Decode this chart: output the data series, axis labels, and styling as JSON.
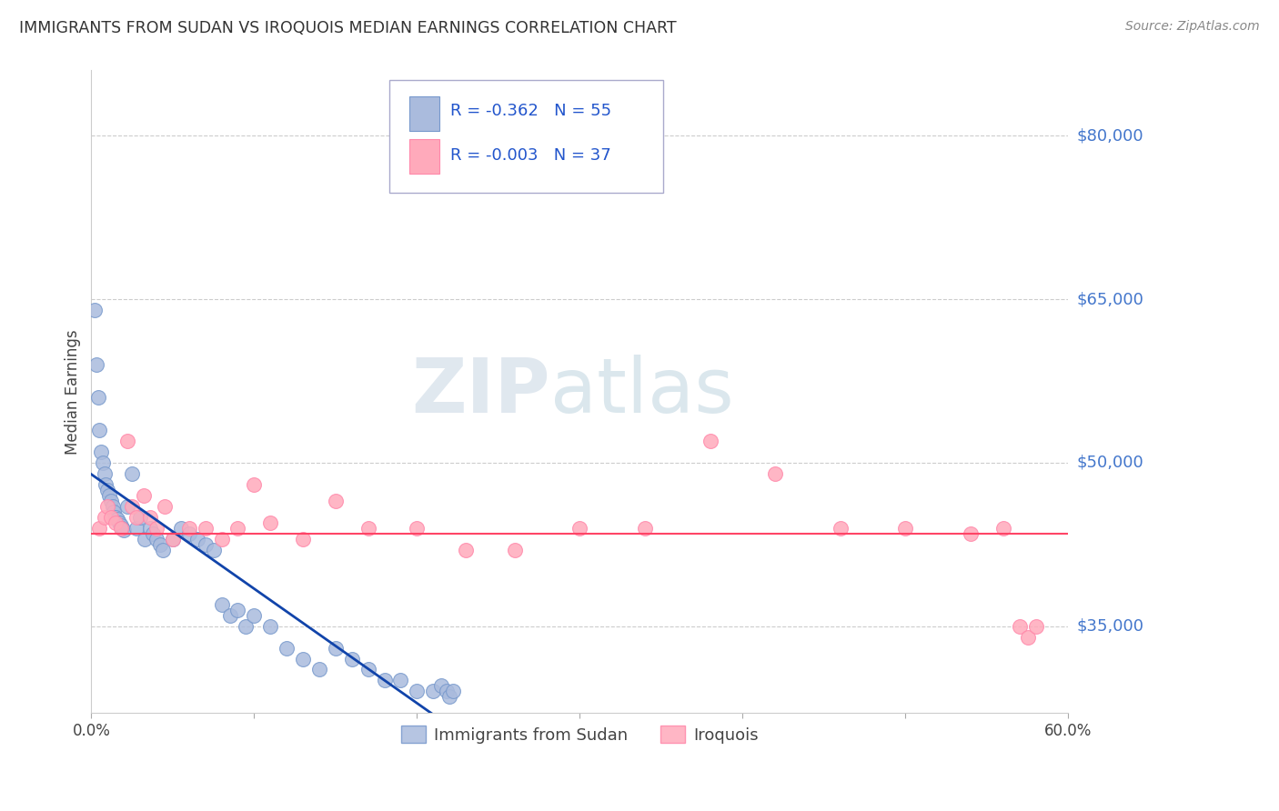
{
  "title": "IMMIGRANTS FROM SUDAN VS IROQUOIS MEDIAN EARNINGS CORRELATION CHART",
  "source": "Source: ZipAtlas.com",
  "ylabel": "Median Earnings",
  "xlim": [
    0.0,
    0.6
  ],
  "ylim": [
    27000,
    86000
  ],
  "yticks": [
    35000,
    50000,
    65000,
    80000
  ],
  "ytick_labels": [
    "$35,000",
    "$50,000",
    "$65,000",
    "$80,000"
  ],
  "xticks": [
    0.0,
    0.1,
    0.2,
    0.3,
    0.4,
    0.5,
    0.6
  ],
  "xtick_labels": [
    "0.0%",
    "",
    "",
    "",
    "",
    "",
    "60.0%"
  ],
  "blue_R": -0.362,
  "blue_N": 55,
  "pink_R": -0.003,
  "pink_N": 37,
  "blue_color": "#aabbdd",
  "pink_color": "#ffaabb",
  "blue_edge_color": "#7799cc",
  "pink_edge_color": "#ff88aa",
  "blue_line_color": "#1144aa",
  "pink_line_color": "#ff4466",
  "watermark_zip": "ZIP",
  "watermark_atlas": "atlas",
  "legend_label_blue": "Immigrants from Sudan",
  "legend_label_pink": "Iroquois",
  "background_color": "#ffffff",
  "grid_color": "#cccccc",
  "title_color": "#333333",
  "axis_label_color": "#444444",
  "ytick_color": "#4477cc",
  "legend_text_color": "#2255cc",
  "blue_x": [
    0.002,
    0.003,
    0.004,
    0.005,
    0.006,
    0.007,
    0.008,
    0.009,
    0.01,
    0.011,
    0.012,
    0.013,
    0.014,
    0.015,
    0.016,
    0.017,
    0.018,
    0.019,
    0.02,
    0.022,
    0.025,
    0.028,
    0.03,
    0.033,
    0.036,
    0.038,
    0.04,
    0.042,
    0.044,
    0.05,
    0.055,
    0.06,
    0.065,
    0.07,
    0.075,
    0.08,
    0.085,
    0.09,
    0.095,
    0.1,
    0.11,
    0.12,
    0.13,
    0.14,
    0.15,
    0.16,
    0.17,
    0.18,
    0.19,
    0.2,
    0.21,
    0.215,
    0.218,
    0.22,
    0.222
  ],
  "blue_y": [
    64000,
    59000,
    56000,
    53000,
    51000,
    50000,
    49000,
    48000,
    47500,
    47000,
    46500,
    46000,
    45500,
    45000,
    44800,
    44500,
    44200,
    44000,
    43800,
    46000,
    49000,
    44000,
    45000,
    43000,
    44000,
    43500,
    43000,
    42500,
    42000,
    43000,
    44000,
    43500,
    43000,
    42500,
    42000,
    37000,
    36000,
    36500,
    35000,
    36000,
    35000,
    33000,
    32000,
    31000,
    33000,
    32000,
    31000,
    30000,
    30000,
    29000,
    29000,
    29500,
    29000,
    28500,
    29000
  ],
  "pink_x": [
    0.005,
    0.008,
    0.01,
    0.012,
    0.015,
    0.018,
    0.022,
    0.025,
    0.028,
    0.032,
    0.036,
    0.04,
    0.045,
    0.05,
    0.06,
    0.07,
    0.08,
    0.09,
    0.1,
    0.11,
    0.13,
    0.15,
    0.17,
    0.2,
    0.23,
    0.26,
    0.3,
    0.34,
    0.38,
    0.42,
    0.46,
    0.5,
    0.54,
    0.56,
    0.57,
    0.575,
    0.58
  ],
  "pink_y": [
    44000,
    45000,
    46000,
    45000,
    44500,
    44000,
    52000,
    46000,
    45000,
    47000,
    45000,
    44000,
    46000,
    43000,
    44000,
    44000,
    43000,
    44000,
    48000,
    44500,
    43000,
    46500,
    44000,
    44000,
    42000,
    42000,
    44000,
    44000,
    52000,
    49000,
    44000,
    44000,
    43500,
    44000,
    35000,
    34000,
    35000
  ],
  "blue_line_x_start": 0.0,
  "blue_line_x_end": 0.225,
  "pink_line_y_const": 43500
}
